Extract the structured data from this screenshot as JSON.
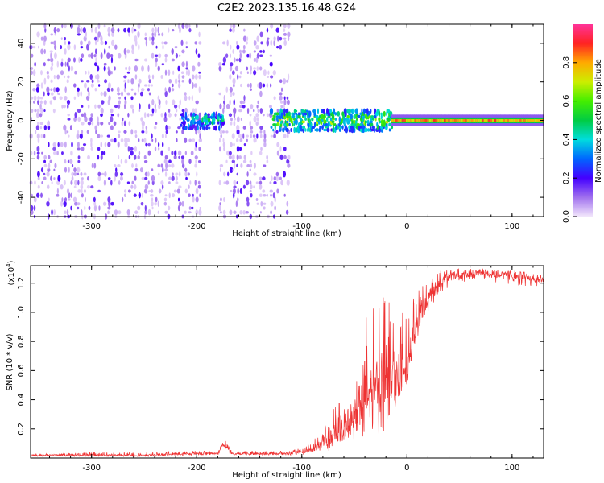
{
  "title": "C2E2.2023.135.16.48.G24",
  "chart_data": [
    {
      "type": "heatmap",
      "xlabel": "Height of straight line (km)",
      "ylabel": "Frequency (Hz)",
      "xlim": [
        -358,
        130
      ],
      "ylim": [
        -50,
        50
      ],
      "x_ticks": [
        -300,
        -200,
        -100,
        0,
        100
      ],
      "x_tick_labels": [
        "-300",
        "-200",
        "-100",
        "0",
        "100"
      ],
      "y_ticks": [
        -40,
        -20,
        0,
        20,
        40
      ],
      "y_tick_labels": [
        "-40",
        "-20",
        "0",
        "20",
        "40"
      ],
      "colorbar": {
        "label": "Normalized spectral amplitude",
        "range": [
          0,
          1
        ],
        "ticks": [
          0.0,
          0.2,
          0.4,
          0.6,
          0.8
        ],
        "tick_labels": [
          "0.0",
          "0.2",
          "0.4",
          "0.6",
          "0.8"
        ]
      },
      "regions": [
        {
          "description": "broadband noise",
          "x_range": [
            -358,
            -198
          ],
          "freq_range": [
            -50,
            50
          ],
          "amplitude": [
            0.02,
            0.2
          ]
        },
        {
          "description": "broadband noise",
          "x_range": [
            -178,
            -112
          ],
          "freq_range": [
            -50,
            50
          ],
          "amplitude": [
            0.02,
            0.2
          ]
        },
        {
          "description": "narrowband signal",
          "x_range": [
            -215,
            -175
          ],
          "freq_range": [
            -4,
            4
          ],
          "amplitude": [
            0.2,
            0.5
          ]
        },
        {
          "description": "narrowband signal",
          "x_range": [
            -130,
            -15
          ],
          "freq_range": [
            -5,
            5
          ],
          "amplitude": [
            0.3,
            0.7
          ]
        },
        {
          "description": "carrier tone",
          "x_range": [
            -15,
            130
          ],
          "freq_range": [
            -1.5,
            1.5
          ],
          "amplitude": [
            0.8,
            1.0
          ]
        }
      ]
    },
    {
      "type": "line",
      "xlabel": "Height of straight line (km)",
      "ylabel": "SNR (10 * v/v)",
      "y_multiplier_label": "(x10",
      "y_multiplier_exp": "4",
      "y_multiplier_close": ")",
      "xlim": [
        -358,
        130
      ],
      "ylim": [
        0,
        1.32
      ],
      "x_ticks": [
        -300,
        -200,
        -100,
        0,
        100
      ],
      "x_tick_labels": [
        "-300",
        "-200",
        "-100",
        "0",
        "100"
      ],
      "y_ticks": [
        0.2,
        0.4,
        0.6,
        0.8,
        1.0,
        1.2
      ],
      "y_tick_labels": [
        "0.2",
        "0.4",
        "0.6",
        "0.8",
        "1.0",
        "1.2"
      ],
      "color": "#ee3333",
      "series": [
        {
          "name": "SNR",
          "x": [
            -358,
            -300,
            -250,
            -200,
            -180,
            -175,
            -165,
            -150,
            -120,
            -100,
            -90,
            -80,
            -70,
            -60,
            -50,
            -45,
            -40,
            -35,
            -30,
            -25,
            -20,
            -15,
            -10,
            -5,
            0,
            5,
            10,
            20,
            30,
            40,
            50,
            60,
            70,
            80,
            90,
            100,
            110,
            120,
            130
          ],
          "values": [
            0.02,
            0.02,
            0.02,
            0.03,
            0.03,
            0.1,
            0.03,
            0.03,
            0.03,
            0.04,
            0.06,
            0.1,
            0.15,
            0.2,
            0.3,
            0.35,
            0.4,
            0.45,
            0.5,
            0.55,
            0.6,
            0.55,
            0.5,
            0.55,
            0.65,
            0.8,
            0.95,
            1.1,
            1.2,
            1.24,
            1.25,
            1.26,
            1.27,
            1.26,
            1.26,
            1.25,
            1.24,
            1.23,
            1.22
          ],
          "envelope_upper": [
            0.03,
            0.04,
            0.04,
            0.05,
            0.05,
            0.14,
            0.05,
            0.05,
            0.05,
            0.07,
            0.12,
            0.2,
            0.35,
            0.5,
            0.7,
            0.9,
            1.0,
            1.05,
            1.1,
            1.15,
            1.2,
            1.05,
            0.95,
            1.0,
            1.05,
            1.1,
            1.2,
            1.25,
            1.3,
            1.3,
            1.3,
            1.3,
            1.31,
            1.3,
            1.3,
            1.29,
            1.28,
            1.27,
            1.26
          ],
          "envelope_lower": [
            0.01,
            0.01,
            0.01,
            0.02,
            0.02,
            0.05,
            0.02,
            0.02,
            0.02,
            0.02,
            0.03,
            0.04,
            0.05,
            0.06,
            0.08,
            0.1,
            0.1,
            0.12,
            0.15,
            0.15,
            0.2,
            0.3,
            0.35,
            0.4,
            0.5,
            0.6,
            0.8,
            1.0,
            1.1,
            1.18,
            1.2,
            1.22,
            1.22,
            1.21,
            1.2,
            1.19,
            1.18,
            1.17,
            1.17
          ]
        }
      ]
    }
  ]
}
